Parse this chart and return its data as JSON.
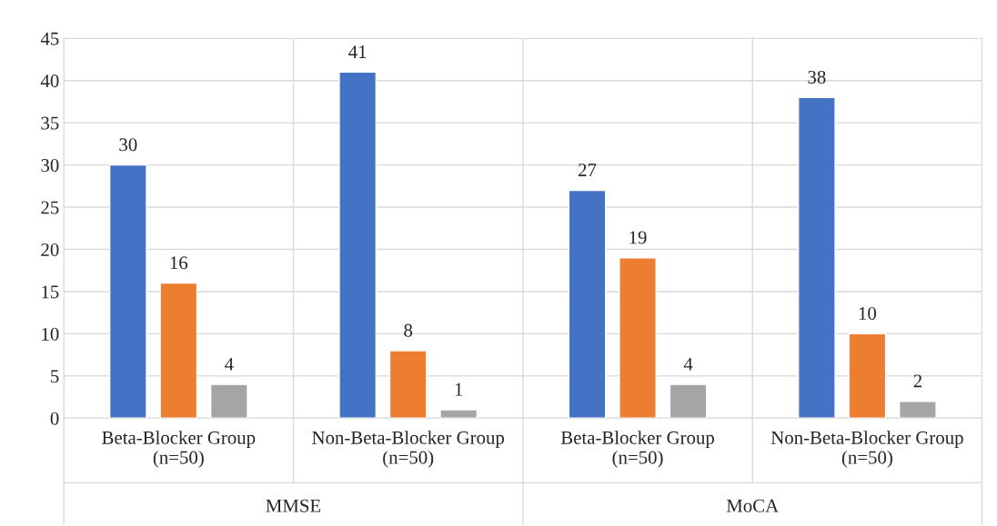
{
  "chart_data": {
    "type": "bar",
    "categories": [
      "Beta-Blocker Group\n(n=50)",
      "Non-Beta-Blocker Group\n(n=50)",
      "Beta-Blocker Group\n(n=50)",
      "Non-Beta-Blocker Group\n(n=50)"
    ],
    "series": [
      {
        "color": "#4472c4",
        "values": [
          30,
          41,
          27,
          38
        ]
      },
      {
        "color": "#ed7d31",
        "values": [
          16,
          8,
          19,
          10
        ]
      },
      {
        "color": "#a5a5a5",
        "values": [
          4,
          1,
          4,
          2
        ]
      }
    ],
    "ylim": [
      0,
      45
    ],
    "yticks": [
      0,
      5,
      10,
      15,
      20,
      25,
      30,
      35,
      40,
      45
    ],
    "grid": "y",
    "data_labels": true,
    "annotations": [
      "MMSE",
      "MoCA"
    ]
  }
}
